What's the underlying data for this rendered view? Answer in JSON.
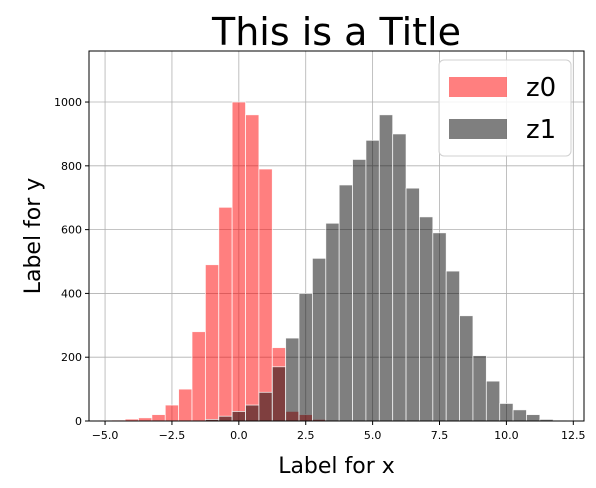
{
  "chart_data": {
    "type": "bar",
    "title": "This is a Title",
    "xlabel": "Label for x",
    "ylabel": "Label for y",
    "xlim": [
      -5.6,
      12.9
    ],
    "ylim": [
      0,
      1160
    ],
    "xticks": [
      -5.0,
      -2.5,
      0.0,
      2.5,
      5.0,
      7.5,
      10.0,
      12.5
    ],
    "xtick_labels": [
      "−5.0",
      "−2.5",
      "0.0",
      "2.5",
      "5.0",
      "7.5",
      "10.0",
      "12.5"
    ],
    "yticks": [
      0,
      200,
      400,
      600,
      800,
      1000
    ],
    "ytick_labels": [
      "0",
      "200",
      "400",
      "600",
      "800",
      "1000"
    ],
    "grid": true,
    "legend_position": "top-right",
    "bin_width": 0.5,
    "series": [
      {
        "name": "z0",
        "color": "#ff0000",
        "opacity": 0.5,
        "bins": [
          [
            -5.0,
            2
          ],
          [
            -4.5,
            3
          ],
          [
            -4.0,
            6
          ],
          [
            -3.5,
            10
          ],
          [
            -3.0,
            20
          ],
          [
            -2.5,
            50
          ],
          [
            -2.0,
            100
          ],
          [
            -1.5,
            280
          ],
          [
            -1.0,
            490
          ],
          [
            -0.5,
            670
          ],
          [
            -0.0,
            1000
          ],
          [
            0.5,
            960
          ],
          [
            1.0,
            790
          ],
          [
            1.5,
            230
          ],
          [
            2.0,
            30
          ],
          [
            2.5,
            20
          ],
          [
            3.0,
            5
          ],
          [
            3.5,
            2
          ]
        ]
      },
      {
        "name": "z1",
        "color": "#000000",
        "opacity": 0.5,
        "bins": [
          [
            -1.0,
            5
          ],
          [
            -0.5,
            15
          ],
          [
            0.0,
            30
          ],
          [
            0.5,
            50
          ],
          [
            1.0,
            90
          ],
          [
            1.5,
            170
          ],
          [
            2.0,
            260
          ],
          [
            2.5,
            400
          ],
          [
            3.0,
            510
          ],
          [
            3.5,
            620
          ],
          [
            4.0,
            740
          ],
          [
            4.5,
            820
          ],
          [
            5.0,
            880
          ],
          [
            5.5,
            960
          ],
          [
            6.0,
            900
          ],
          [
            6.5,
            730
          ],
          [
            7.0,
            640
          ],
          [
            7.5,
            590
          ],
          [
            8.0,
            470
          ],
          [
            8.5,
            330
          ],
          [
            9.0,
            205
          ],
          [
            9.5,
            125
          ],
          [
            10.0,
            55
          ],
          [
            10.5,
            35
          ],
          [
            11.0,
            20
          ],
          [
            11.5,
            5
          ],
          [
            12.0,
            2
          ]
        ]
      }
    ]
  }
}
